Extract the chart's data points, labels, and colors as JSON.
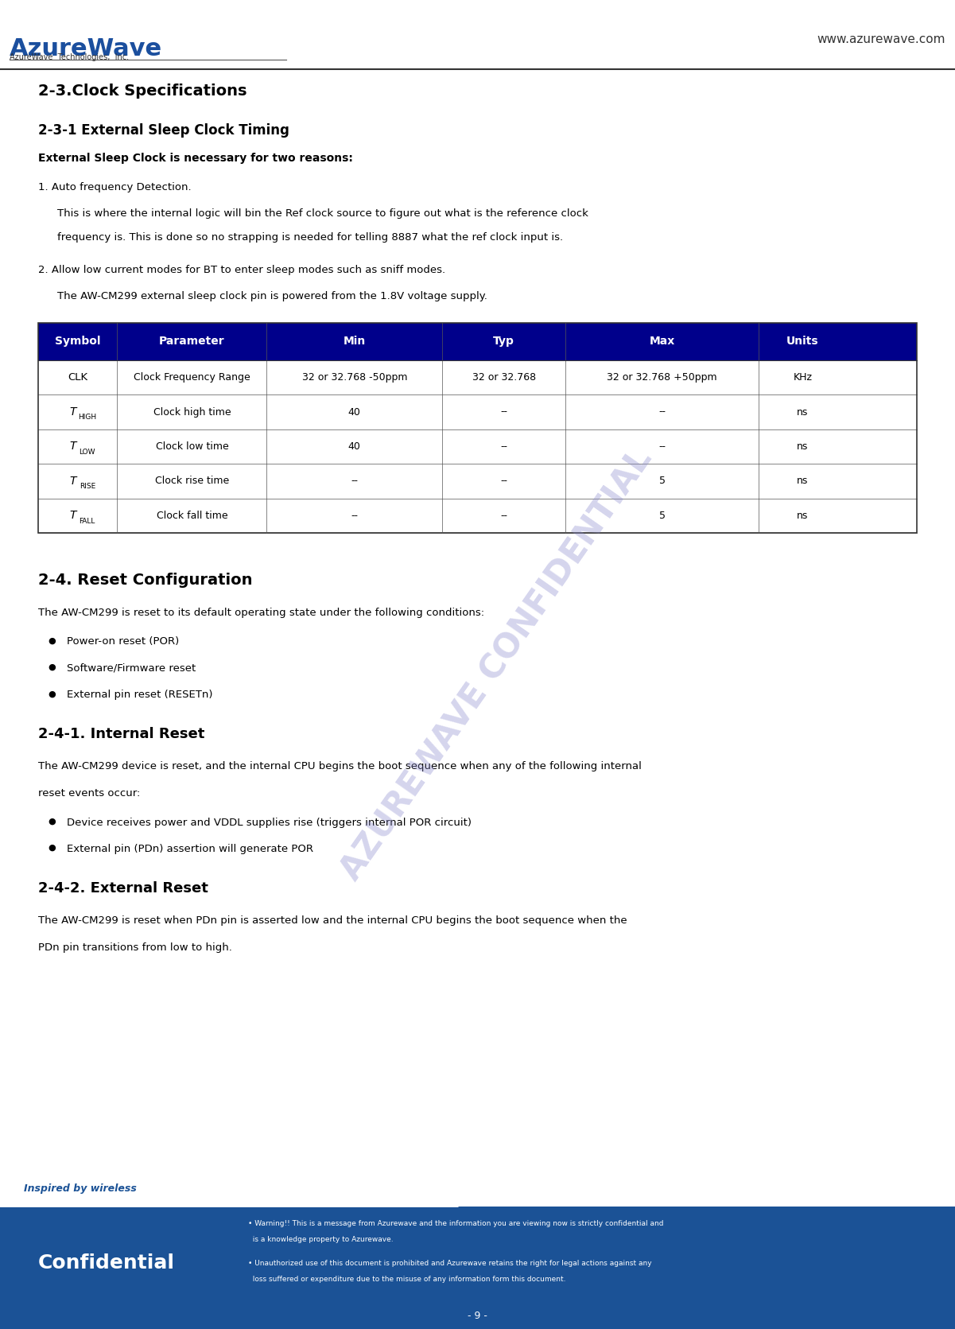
{
  "page_width": 12.01,
  "page_height": 16.71,
  "bg_color": "#ffffff",
  "logo_text_main": "AzureWave",
  "logo_text_sub": "AzureWave  Technologies,  Inc.",
  "website": "www.azurewave.com",
  "logo_color": "#1B4F9E",
  "section_title": "2-3.Clock Specifications",
  "subsection1": "2-3-1 External Sleep Clock Timing",
  "bold_intro": "External Sleep Clock is necessary for two reasons:",
  "point1_title": "1. Auto frequency Detection.",
  "point1_body1": "This is where the internal logic will bin the Ref clock source to figure out what is the reference clock",
  "point1_body2": "frequency is. This is done so no strapping is needed for telling 8887 what the ref clock input is.",
  "point2_title": "2. Allow low current modes for BT to enter sleep modes such as sniff modes.",
  "point2_body": "The AW-CM299 external sleep clock pin is powered from the 1.8V voltage supply.",
  "table_header": [
    "Symbol",
    "Parameter",
    "Min",
    "Typ",
    "Max",
    "Units"
  ],
  "table_header_bg": "#00008B",
  "table_header_fg": "#ffffff",
  "table_rows": [
    [
      "CLK",
      "Clock Frequency Range",
      "32 or 32.768 -50ppm",
      "32 or 32.768",
      "32 or 32.768 +50ppm",
      "KHz"
    ],
    [
      "THIGH",
      "Clock high time",
      "40",
      "--",
      "--",
      "ns"
    ],
    [
      "TLOW",
      "Clock low time",
      "40",
      "--",
      "--",
      "ns"
    ],
    [
      "TRISE",
      "Clock rise time",
      "--",
      "--",
      "5",
      "ns"
    ],
    [
      "TFALL",
      "Clock fall time",
      "--",
      "--",
      "5",
      "ns"
    ]
  ],
  "table_border": "#000000",
  "section2_title": "2-4. Reset Configuration",
  "section2_body": "The AW-CM299 is reset to its default operating state under the following conditions:",
  "section2_bullets": [
    "Power-on reset (POR)",
    "Software/Firmware reset",
    "External pin reset (RESETn)"
  ],
  "subsection2": "2-4-1. Internal Reset",
  "internal_reset_body1": "The AW-CM299 device is reset, and the internal CPU begins the boot sequence when any of the following internal",
  "internal_reset_body2": "reset events occur:",
  "internal_reset_bullets": [
    "Device receives power and VDDL supplies rise (triggers internal POR circuit)",
    "External pin (PDn) assertion will generate POR"
  ],
  "subsection3": "2-4-2. External Reset",
  "external_reset_body1": "The AW-CM299 is reset when PDn pin is asserted low and the internal CPU begins the boot sequence when the",
  "external_reset_body2": "PDn pin transitions from low to high.",
  "footer_bg": "#1B5296",
  "footer_text1": "Inspired by wireless",
  "footer_text2": "Confidential",
  "footer_warning1a": "• Warning!! This is a message from Azurewave and the information you are viewing now is strictly confidential and",
  "footer_warning1b": "  is a knowledge property to Azurewave.",
  "footer_warning2a": "• Unauthorized use of this document is prohibited and Azurewave retains the right for legal actions against any",
  "footer_warning2b": "  loss suffered or expenditure due to the misuse of any information form this document.",
  "page_number": "- 9 -",
  "confidential_watermark": "AZUREWAVE CONFIDENTIAL",
  "watermark_color": "#8888cc",
  "watermark_alpha": 0.35
}
